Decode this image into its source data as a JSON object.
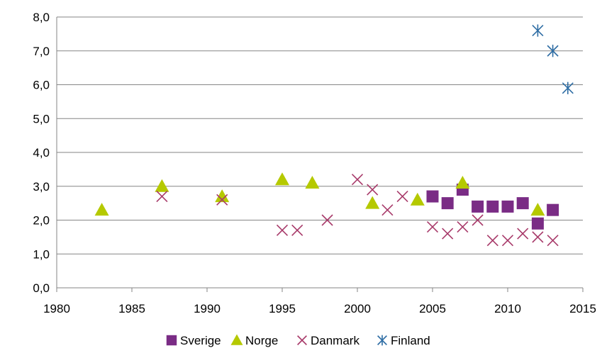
{
  "chart_data": {
    "type": "scatter",
    "title": "",
    "xlabel": "",
    "ylabel": "",
    "xlim": [
      1980,
      2015
    ],
    "ylim": [
      0,
      8
    ],
    "xticks": [
      1980,
      1985,
      1990,
      1995,
      2000,
      2005,
      2010,
      2015
    ],
    "yticks": [
      0,
      1,
      2,
      3,
      4,
      5,
      6,
      7,
      8
    ],
    "x_tick_labels": [
      "1980",
      "1985",
      "1990",
      "1995",
      "2000",
      "2005",
      "2010",
      "2015"
    ],
    "y_tick_labels": [
      "0,0",
      "1,0",
      "2,0",
      "3,0",
      "4,0",
      "5,0",
      "6,0",
      "7,0",
      "8,0"
    ],
    "grid": "horizontal",
    "legend_position": "bottom",
    "series": [
      {
        "name": "Sverige",
        "marker": "square",
        "color": "#7a2c85",
        "points": [
          [
            2005,
            2.7
          ],
          [
            2006,
            2.5
          ],
          [
            2007,
            2.9
          ],
          [
            2008,
            2.4
          ],
          [
            2009,
            2.4
          ],
          [
            2010,
            2.4
          ],
          [
            2011,
            2.5
          ],
          [
            2012,
            1.9
          ],
          [
            2013,
            2.3
          ]
        ]
      },
      {
        "name": "Norge",
        "marker": "triangle",
        "color": "#b5c900",
        "points": [
          [
            1983,
            2.3
          ],
          [
            1987,
            3.0
          ],
          [
            1991,
            2.7
          ],
          [
            1995,
            3.2
          ],
          [
            1997,
            3.1
          ],
          [
            2001,
            2.5
          ],
          [
            2004,
            2.6
          ],
          [
            2007,
            3.1
          ],
          [
            2012,
            2.3
          ]
        ]
      },
      {
        "name": "Danmark",
        "marker": "x",
        "color": "#a83a6a",
        "points": [
          [
            1987,
            2.7
          ],
          [
            1991,
            2.6
          ],
          [
            1995,
            1.7
          ],
          [
            1996,
            1.7
          ],
          [
            1998,
            2.0
          ],
          [
            2000,
            3.2
          ],
          [
            2001,
            2.9
          ],
          [
            2002,
            2.3
          ],
          [
            2003,
            2.7
          ],
          [
            2005,
            1.8
          ],
          [
            2006,
            1.6
          ],
          [
            2007,
            1.8
          ],
          [
            2008,
            2.0
          ],
          [
            2009,
            1.4
          ],
          [
            2010,
            1.4
          ],
          [
            2011,
            1.6
          ],
          [
            2012,
            1.5
          ],
          [
            2013,
            1.4
          ]
        ]
      },
      {
        "name": "Finland",
        "marker": "asterisk",
        "color": "#2e6da4",
        "points": [
          [
            2012,
            7.6
          ],
          [
            2013,
            7.0
          ],
          [
            2014,
            5.9
          ]
        ]
      }
    ]
  }
}
